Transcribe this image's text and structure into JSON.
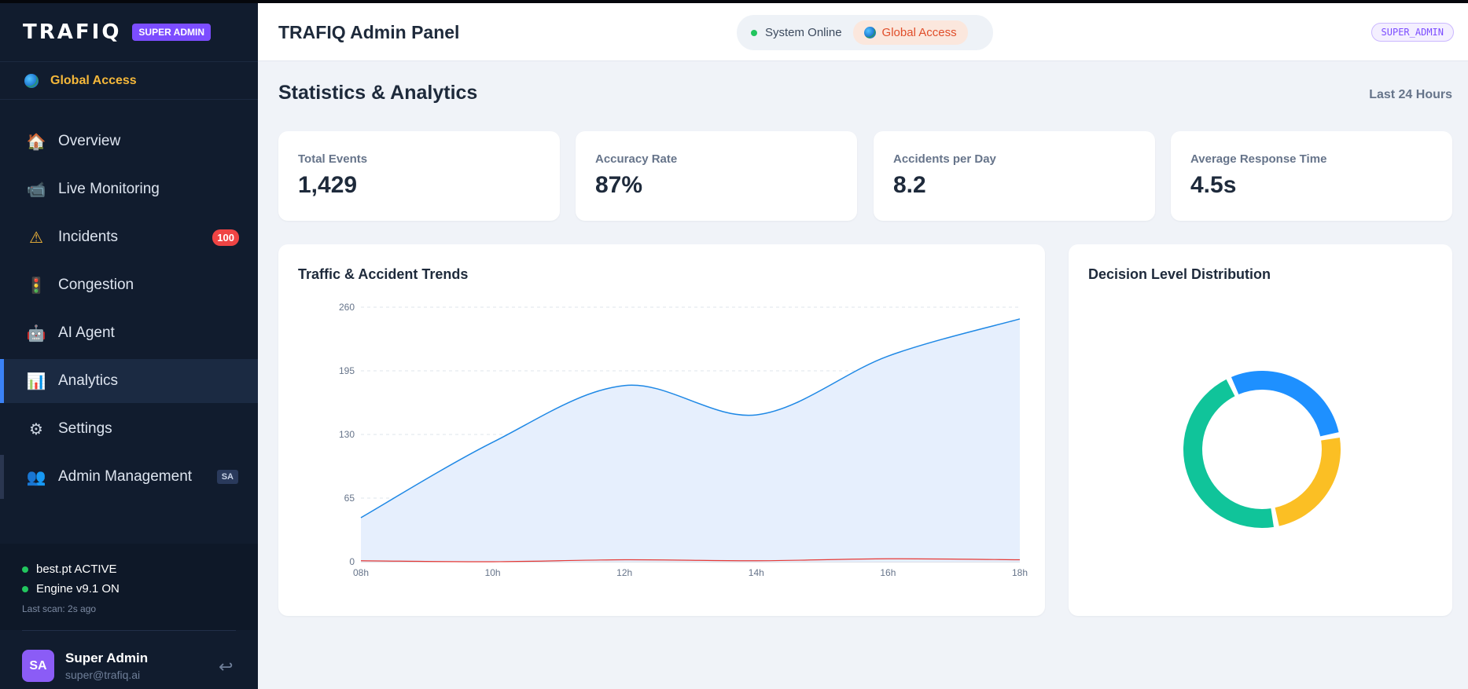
{
  "sidebar": {
    "logo": "TRAFIQ",
    "role_badge": "SUPER ADMIN",
    "access_label": "Global Access",
    "nav": [
      {
        "label": "Overview",
        "icon": "house-icon",
        "glyph": "🏠"
      },
      {
        "label": "Live Monitoring",
        "icon": "camera-icon",
        "glyph": "📹"
      },
      {
        "label": "Incidents",
        "icon": "warning-icon",
        "glyph": "⚠",
        "badge": "100"
      },
      {
        "label": "Congestion",
        "icon": "traffic-light-icon",
        "glyph": "🚦"
      },
      {
        "label": "AI Agent",
        "icon": "robot-icon",
        "glyph": "🤖"
      },
      {
        "label": "Analytics",
        "icon": "bar-chart-icon",
        "glyph": "📊",
        "active": true
      },
      {
        "label": "Settings",
        "icon": "gear-icon",
        "glyph": "⚙"
      },
      {
        "label": "Admin Management",
        "icon": "users-icon",
        "glyph": "👥",
        "tag": "SA"
      }
    ],
    "system": {
      "model_status": "best.pt ACTIVE",
      "engine_status": "Engine v9.1 ON",
      "last_scan": "Last scan: 2s ago"
    },
    "user": {
      "initials": "SA",
      "name": "Super Admin",
      "email": "super@trafiq.ai"
    }
  },
  "header": {
    "title": "TRAFIQ Admin Panel",
    "system_status": "System Online",
    "access": "Global Access",
    "role": "SUPER_ADMIN"
  },
  "main": {
    "title": "Statistics & Analytics",
    "range": "Last 24 Hours",
    "stats": [
      {
        "label": "Total Events",
        "value": "1,429"
      },
      {
        "label": "Accuracy Rate",
        "value": "87%"
      },
      {
        "label": "Accidents per Day",
        "value": "8.2"
      },
      {
        "label": "Average Response Time",
        "value": "4.5s"
      }
    ]
  },
  "colors": {
    "accent": "#3b82f6",
    "traffic": "#1e88e5",
    "accident": "#e53935",
    "donut_blue": "#1e90ff",
    "donut_yellow": "#fbbf24",
    "donut_green": "#10c49a"
  },
  "chart_data": [
    {
      "type": "area",
      "title": "Traffic & Accident Trends",
      "x": [
        "08h",
        "10h",
        "12h",
        "14h",
        "16h",
        "18h"
      ],
      "ylim": [
        0,
        260
      ],
      "yticks": [
        0,
        65,
        130,
        195,
        260
      ],
      "grid": true,
      "series": [
        {
          "values": [
            45,
            122,
            180,
            150,
            210,
            248
          ]
        },
        {
          "values": [
            1,
            0,
            2,
            1,
            3,
            2
          ]
        }
      ]
    },
    {
      "type": "pie",
      "title": "Decision Level Distribution",
      "values": [
        29,
        25,
        46
      ]
    }
  ]
}
